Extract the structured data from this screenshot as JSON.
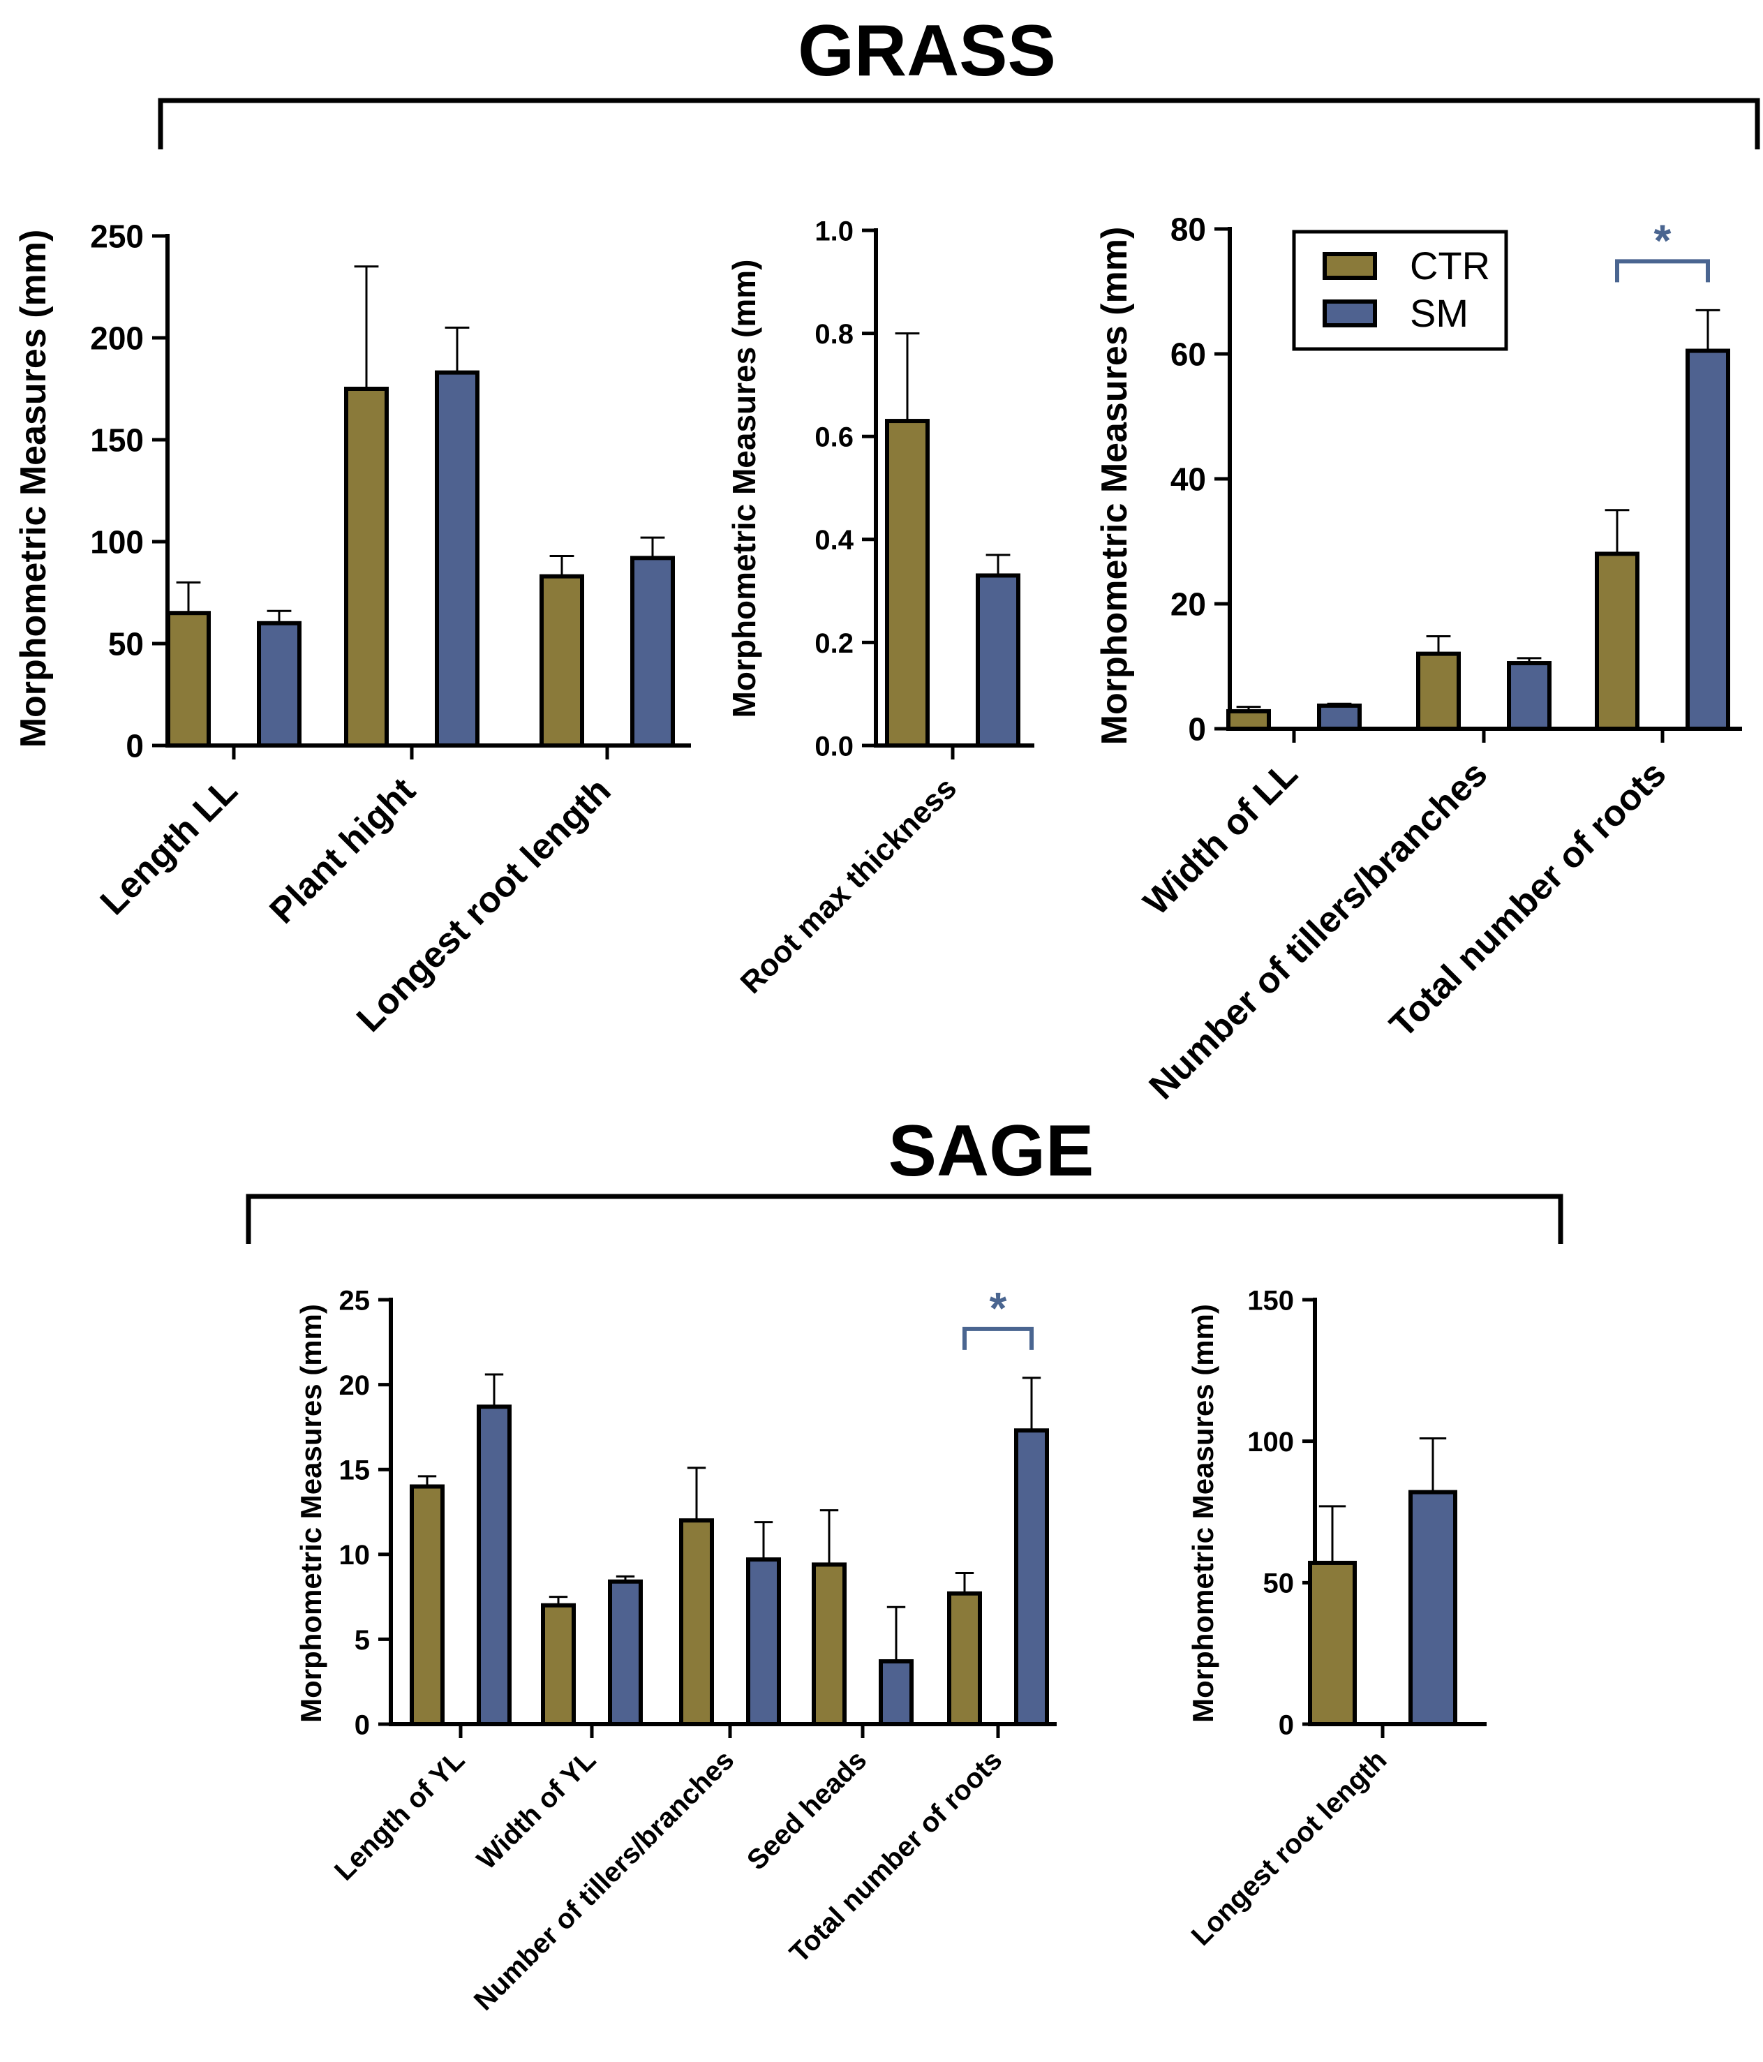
{
  "sections": [
    {
      "title": "GRASS"
    },
    {
      "title": "SAGE"
    }
  ],
  "legend": {
    "entries": [
      {
        "label": "CTR",
        "color": "#8a7a3a"
      },
      {
        "label": "SM",
        "color": "#4f6290"
      }
    ]
  },
  "colors": {
    "CTR": "#8a7a3a",
    "SM": "#4f6290",
    "significance": "#4a6590"
  },
  "chart_data": [
    {
      "type": "bar",
      "section": "GRASS",
      "ylabel": "Morphometric Measures  (mm)",
      "ylim": [
        0,
        250
      ],
      "yticks": [
        "0",
        "50",
        "100",
        "150",
        "200",
        "250"
      ],
      "categories": [
        "Length LL",
        "Plant hight",
        "Longest root length"
      ],
      "series": [
        {
          "name": "CTR",
          "values": [
            65,
            175,
            83
          ],
          "errors": [
            15,
            60,
            10
          ]
        },
        {
          "name": "SM",
          "values": [
            60,
            183,
            92
          ],
          "errors": [
            6,
            22,
            10
          ]
        }
      ],
      "significance": []
    },
    {
      "type": "bar",
      "section": "GRASS",
      "ylabel": "Morphometric Measures  (mm)",
      "ylim": [
        0,
        1.0
      ],
      "yticks": [
        "0.0",
        "0.2",
        "0.4",
        "0.6",
        "0.8",
        "1.0"
      ],
      "categories": [
        "Root max thickness"
      ],
      "series": [
        {
          "name": "CTR",
          "values": [
            0.63
          ],
          "errors": [
            0.17
          ]
        },
        {
          "name": "SM",
          "values": [
            0.33
          ],
          "errors": [
            0.04
          ]
        }
      ],
      "significance": []
    },
    {
      "type": "bar",
      "section": "GRASS",
      "ylabel": "Morphometric Measures  (mm)",
      "ylim": [
        0,
        80
      ],
      "yticks": [
        "0",
        "20",
        "40",
        "60",
        "80"
      ],
      "categories": [
        "Width of LL",
        "Number of tillers/branches",
        "Total number of roots"
      ],
      "series": [
        {
          "name": "CTR",
          "values": [
            2.8,
            12,
            28
          ],
          "errors": [
            0.7,
            2.8,
            7
          ]
        },
        {
          "name": "SM",
          "values": [
            3.7,
            10.5,
            60.5
          ],
          "errors": [
            0.3,
            0.8,
            6.5
          ]
        }
      ],
      "significance": [
        {
          "category": "Total number of roots",
          "label": "*"
        }
      ],
      "legend": "top-center"
    },
    {
      "type": "bar",
      "section": "SAGE",
      "ylabel": "Morphometric Measures  (mm)",
      "ylim": [
        0,
        25
      ],
      "yticks": [
        "0",
        "5",
        "10",
        "15",
        "20",
        "25"
      ],
      "categories": [
        "Length of YL",
        "Width of YL",
        "Number of tillers/branches",
        "Seed heads",
        "Total number of roots"
      ],
      "series": [
        {
          "name": "CTR",
          "values": [
            14,
            7,
            12,
            9.4,
            7.7
          ],
          "errors": [
            0.6,
            0.5,
            3.1,
            3.2,
            1.2
          ]
        },
        {
          "name": "SM",
          "values": [
            18.7,
            8.4,
            9.7,
            3.7,
            17.3
          ],
          "errors": [
            1.9,
            0.3,
            2.2,
            3.2,
            3.1
          ]
        }
      ],
      "significance": [
        {
          "category": "Total number of roots",
          "label": "*"
        }
      ]
    },
    {
      "type": "bar",
      "section": "SAGE",
      "ylabel": "Morphometric Measures  (mm)",
      "ylim": [
        0,
        150
      ],
      "yticks": [
        "0",
        "50",
        "100",
        "150"
      ],
      "categories": [
        "Longest root length"
      ],
      "series": [
        {
          "name": "CTR",
          "values": [
            57
          ],
          "errors": [
            20
          ]
        },
        {
          "name": "SM",
          "values": [
            82
          ],
          "errors": [
            19
          ]
        }
      ],
      "significance": []
    }
  ]
}
